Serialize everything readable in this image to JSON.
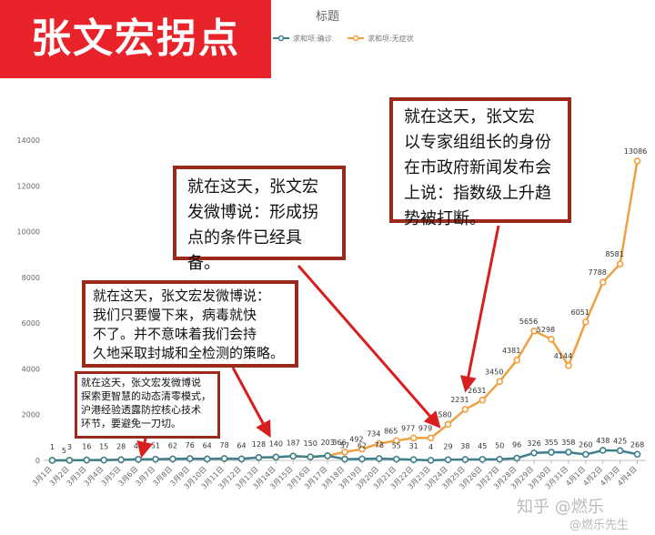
{
  "banner": {
    "text": "张文宏拐点"
  },
  "callouts": [
    {
      "text": "就在这天，张文宏发微博说\n探索更智慧的动态清零模式，\n沪港经验透露防控核心技术\n环节，要避免一刀切。"
    },
    {
      "text": "就在这天，张文宏发微博说：\n我们只要慢下来，病毒就快\n不了。并不意味着我们会持\n久地采取封城和全检测的策略。"
    },
    {
      "text": "就在这天，张文宏\n发微博说：形成拐\n点的条件已经具备。"
    },
    {
      "text": "就在这天，张文宏\n以专家组组长的身份\n在市政府新闻发布会\n上说：指数级上升趋\n势被打断。"
    }
  ],
  "watermark": {
    "text": "知乎 @燃乐"
  },
  "watermark2": {
    "text": "@燃乐先生"
  },
  "chart_data": {
    "type": "line",
    "title": "标题",
    "xlabel": "",
    "ylabel": "",
    "ylim": [
      0,
      14000
    ],
    "yticks": [
      0,
      2000,
      4000,
      6000,
      8000,
      10000,
      12000,
      14000
    ],
    "grid": false,
    "legend": "top",
    "categories": [
      "3月1日",
      "3月2日",
      "3月3日",
      "3月4日",
      "3月5日",
      "3月6日",
      "3月7日",
      "3月8日",
      "3月9日",
      "3月10日",
      "3月11日",
      "3月12日",
      "3月13日",
      "3月14日",
      "3月15日",
      "3月16日",
      "3月17日",
      "3月18日",
      "3月19日",
      "3月20日",
      "3月21日",
      "3月22日",
      "3月23日",
      "3月24日",
      "3月25日",
      "3月26日",
      "3月27日",
      "3月28日",
      "3月29日",
      "3月30日",
      "3月31日",
      "4月1日",
      "4月2日",
      "4月3日",
      "4月4日"
    ],
    "series": [
      {
        "name": "求和项:确诊",
        "color": "#3e7f8e",
        "values": [
          1,
          3,
          16,
          15,
          28,
          45,
          51,
          62,
          76,
          64,
          78,
          64,
          128,
          140,
          187,
          150,
          203,
          57,
          62,
          78,
          55,
          31,
          4,
          29,
          38,
          45,
          50,
          96,
          326,
          355,
          358,
          260,
          438,
          425,
          268
        ]
      },
      {
        "name": "求和项:无症状",
        "color": "#f0a040",
        "values": [
          1,
          5,
          16,
          15,
          28,
          45,
          51,
          62,
          76,
          64,
          78,
          64,
          128,
          140,
          187,
          150,
          203,
          366,
          492,
          734,
          865,
          977,
          979,
          1580,
          2231,
          2631,
          3450,
          4381,
          5656,
          5298,
          4144,
          6051,
          7788,
          8581,
          13086
        ]
      }
    ],
    "labels_confirmed": [
      "1",
      "3",
      "16",
      "15",
      "28",
      "45",
      "51",
      "62",
      "76",
      "64",
      "78",
      "64",
      "128",
      "140",
      "187",
      "150",
      "203",
      "57",
      "62",
      "78",
      "55",
      "31",
      "4",
      "29",
      "38",
      "45",
      "50",
      "96",
      "326",
      "355",
      "358",
      "260",
      "438",
      "425",
      "268"
    ],
    "labels_asymptomatic": [
      "",
      "5",
      "",
      "",
      "",
      "",
      "",
      "",
      "",
      "",
      "",
      "",
      "",
      "",
      "",
      "",
      "",
      "366",
      "492",
      "734",
      "865",
      "977",
      "979",
      "1580",
      "2231",
      "2631",
      "3450",
      "4381",
      "5656",
      "5298",
      "4144",
      "6051",
      "7788",
      "8581",
      "13086"
    ]
  },
  "colors": {
    "banner": "#e8242a",
    "callout_border": "#9c2a1c",
    "arrow": "#d81e1e",
    "axis": "#bfbfbf"
  }
}
